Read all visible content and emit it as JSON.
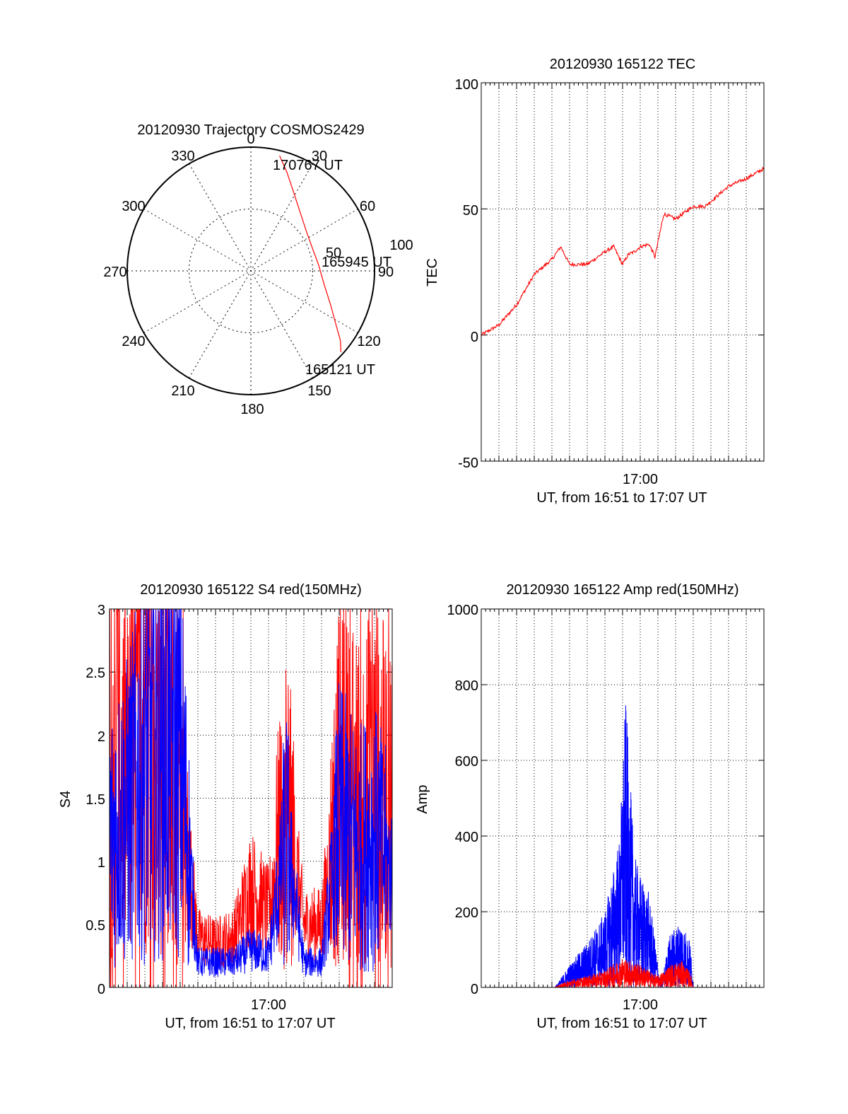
{
  "chart_data": [
    {
      "type": "polar",
      "title": "20120930 Trajectory COSMOS2429",
      "angle_labels": [
        "0",
        "30",
        "60",
        "90",
        "120",
        "150",
        "180",
        "210",
        "240",
        "270",
        "300",
        "330"
      ],
      "radial_labels": [
        "50",
        "100"
      ],
      "rlim": [
        0,
        100
      ],
      "grid": true,
      "series": [
        {
          "color": "#ff0000",
          "points": [
            {
              "az": 14,
              "r": 96
            },
            {
              "az": 20,
              "r": 85
            },
            {
              "az": 28,
              "r": 73
            },
            {
              "az": 40,
              "r": 62
            },
            {
              "az": 55,
              "r": 55
            },
            {
              "az": 70,
              "r": 53
            },
            {
              "az": 85,
              "r": 55
            },
            {
              "az": 100,
              "r": 60
            },
            {
              "az": 113,
              "r": 70
            },
            {
              "az": 122,
              "r": 81
            },
            {
              "az": 128,
              "r": 92
            },
            {
              "az": 132,
              "r": 98
            }
          ]
        }
      ],
      "annotations": [
        {
          "text": "170767 UT"
        },
        {
          "text": "165945 UT"
        },
        {
          "text": "165121 UT"
        }
      ]
    },
    {
      "type": "line",
      "title": "20120930 165122 TEC",
      "xlabel": "UT, from 16:51 to 17:07 UT",
      "ylabel": "TEC",
      "xlim": [
        "16:51",
        "17:07"
      ],
      "ylim": [
        -50,
        100
      ],
      "yticks": [
        "100",
        "50",
        "0",
        "-50"
      ],
      "xticks": [
        "17:00"
      ],
      "grid": true,
      "series": [
        {
          "color": "#ff0000",
          "x": [
            "16:51:00",
            "16:52:00",
            "16:53:00",
            "16:54:00",
            "16:55:00",
            "16:55:30",
            "16:56:00",
            "16:57:00",
            "16:58:00",
            "16:58:30",
            "16:59:00",
            "16:59:20",
            "16:59:40",
            "17:00:00",
            "17:00:30",
            "17:00:50",
            "17:01:20",
            "17:02:00",
            "17:03:00",
            "17:03:40",
            "17:04:00",
            "17:05:00",
            "17:06:00",
            "17:07:00"
          ],
          "y": [
            0,
            4,
            12,
            24,
            30,
            35,
            28,
            28,
            33,
            35,
            28,
            32,
            33,
            35,
            36,
            31,
            48,
            46,
            51,
            51,
            53,
            59,
            62,
            66
          ]
        }
      ]
    },
    {
      "type": "line",
      "title": "20120930 165122 S4 red(150MHz)",
      "xlabel": "UT, from 16:51 to 17:07 UT",
      "ylabel": "S4",
      "xlim": [
        "16:51",
        "17:07"
      ],
      "ylim": [
        0,
        3
      ],
      "yticks": [
        "3",
        "2.5",
        "2",
        "1.5",
        "1",
        "0.5",
        "0"
      ],
      "xticks": [
        "17:00"
      ],
      "grid": true,
      "series": [
        {
          "color": "#ff0000",
          "x": [
            "16:51",
            "16:52",
            "16:53",
            "16:54",
            "16:55",
            "16:56",
            "16:57",
            "16:58",
            "16:59",
            "17:00",
            "17:01",
            "17:02",
            "17:03",
            "17:04",
            "17:05",
            "17:06",
            "17:07"
          ],
          "y": [
            2.2,
            1.6,
            2.2,
            1.9,
            1.5,
            0.4,
            0.35,
            0.4,
            0.8,
            0.6,
            1.5,
            0.5,
            0.5,
            1.6,
            1.5,
            1.6,
            1.5
          ]
        },
        {
          "color": "#0000ff",
          "x": [
            "16:51",
            "16:52",
            "16:53",
            "16:54",
            "16:55",
            "16:56",
            "16:57",
            "16:58",
            "16:59",
            "17:00",
            "17:01",
            "17:02",
            "17:03",
            "17:04",
            "17:05",
            "17:06",
            "17:07"
          ],
          "y": [
            1.2,
            1.4,
            1.8,
            2.0,
            1.9,
            0.2,
            0.2,
            0.2,
            0.3,
            0.25,
            1.2,
            0.2,
            0.2,
            1.3,
            1.1,
            1.2,
            0.9
          ]
        }
      ]
    },
    {
      "type": "line",
      "title": "20120930 165122 Amp red(150MHz)",
      "xlabel": "UT, from 16:51 to 17:07 UT",
      "ylabel": "Amp",
      "xlim": [
        "16:51",
        "17:07"
      ],
      "ylim": [
        0,
        1000
      ],
      "yticks": [
        "1000",
        "800",
        "600",
        "400",
        "200",
        "0"
      ],
      "xticks": [
        "17:00"
      ],
      "grid": true,
      "series": [
        {
          "color": "#0000ff",
          "x": [
            "16:51",
            "16:54",
            "16:55:10",
            "16:56",
            "16:57",
            "16:58",
            "16:58:50",
            "16:59:10",
            "16:59:40",
            "17:00:00",
            "17:00:30",
            "17:01:10",
            "17:01:40",
            "17:02:20",
            "17:02:50",
            "17:03",
            "17:07"
          ],
          "y": [
            0,
            0,
            0,
            60,
            120,
            200,
            400,
            770,
            350,
            300,
            250,
            0,
            140,
            180,
            120,
            0,
            0
          ]
        },
        {
          "color": "#ff0000",
          "x": [
            "16:51",
            "16:54",
            "16:55:10",
            "16:56",
            "16:57",
            "16:58",
            "16:59",
            "17:00",
            "17:01",
            "17:01:40",
            "17:02:20",
            "17:02:50",
            "17:03",
            "17:07"
          ],
          "y": [
            0,
            0,
            0,
            20,
            30,
            45,
            80,
            60,
            30,
            60,
            70,
            40,
            0,
            0
          ]
        }
      ]
    }
  ]
}
